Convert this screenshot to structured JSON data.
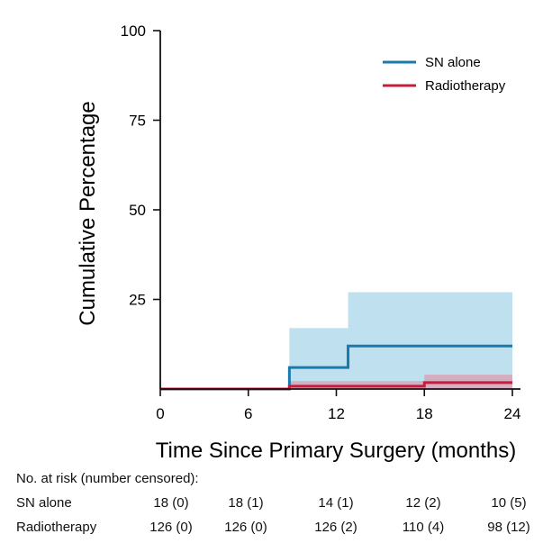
{
  "chart_data": {
    "type": "line",
    "subtype": "cumulative-incidence-step",
    "xlabel": "Time Since Primary Surgery (months)",
    "ylabel": "Cumulative Percentage",
    "xlim": [
      0,
      24
    ],
    "ylim": [
      0,
      100
    ],
    "x_ticks": [
      0,
      6,
      12,
      18,
      24
    ],
    "y_ticks": [
      25,
      50,
      75,
      100
    ],
    "x_tick_labels": [
      "0",
      "6",
      "12",
      "18",
      "24"
    ],
    "y_tick_labels": [
      "25",
      "50",
      "75",
      "100"
    ],
    "legend_position": "top-right",
    "series": [
      {
        "name": "SN alone",
        "color": "#1a7ab0",
        "ci_color": "#bfe0ee",
        "step_x": [
          0,
          8.8,
          12.8,
          24
        ],
        "step_y": [
          0,
          6,
          12,
          12
        ],
        "ci_band": [
          {
            "x0": 8.8,
            "x1": 12.8,
            "lower": 0,
            "upper": 17
          },
          {
            "x0": 12.8,
            "x1": 24,
            "lower": 0,
            "upper": 27
          }
        ]
      },
      {
        "name": "Radiotherapy",
        "color": "#c41e3a",
        "ci_color": "#d9a5b8",
        "step_x": [
          0,
          8.8,
          18,
          24
        ],
        "step_y": [
          0,
          0.8,
          1.8,
          1.8
        ],
        "ci_band": [
          {
            "x0": 8.8,
            "x1": 18,
            "lower": 0,
            "upper": 2.2
          },
          {
            "x0": 18,
            "x1": 24,
            "lower": 0,
            "upper": 4
          }
        ]
      }
    ]
  },
  "risk_table": {
    "title": "No. at risk (number censored):",
    "timepoints": [
      0,
      6,
      12,
      18,
      24
    ],
    "rows": [
      {
        "label": "SN alone",
        "values": [
          "18 (0)",
          "18 (1)",
          "14 (1)",
          "12 (2)",
          "10 (5)"
        ]
      },
      {
        "label": "Radiotherapy",
        "values": [
          "126 (0)",
          "126 (0)",
          "126 (2)",
          "110 (4)",
          "98 (12)"
        ]
      }
    ]
  }
}
